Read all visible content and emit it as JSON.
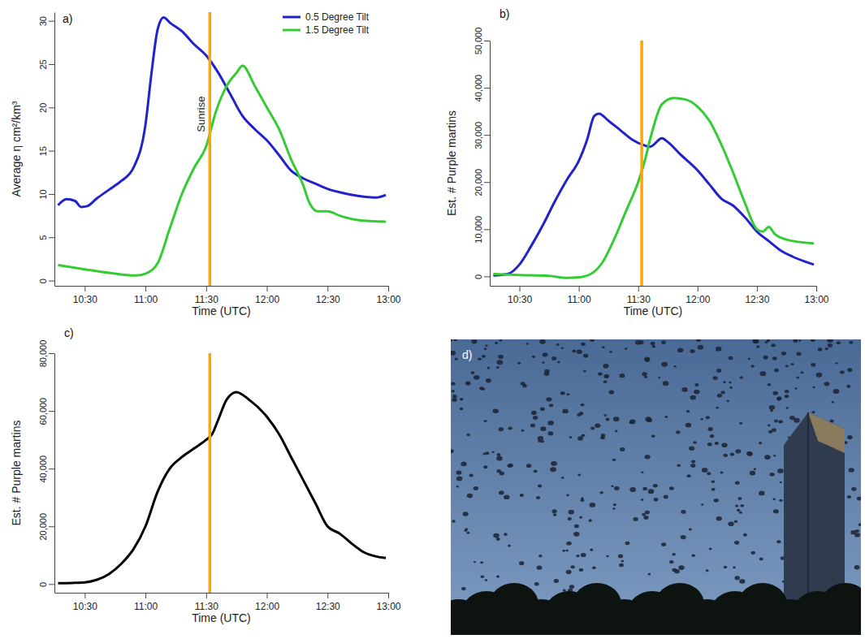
{
  "chart_data": [
    {
      "type": "line",
      "title": "a)",
      "x_label": "Time (UTC)",
      "y_label": "Average η cm²/km³",
      "annotation": "Sunrise",
      "sunrise": 11.53,
      "legend": "top-right",
      "xlim": [
        10.25,
        13.0
      ],
      "xticks": [
        {
          "value": 10.5,
          "label": "10:30"
        },
        {
          "value": 11.0,
          "label": "11:00"
        },
        {
          "value": 11.5,
          "label": "11:30"
        },
        {
          "value": 12.0,
          "label": "12:00"
        },
        {
          "value": 12.5,
          "label": "12:30"
        },
        {
          "value": 13.0,
          "label": "13:00"
        }
      ],
      "ylim": [
        -0.6,
        31
      ],
      "yticks": [
        0,
        5,
        10,
        15,
        20,
        25,
        30
      ],
      "series": [
        {
          "name": "0.5 Degree Tilt",
          "color": "#2222cc",
          "x": [
            10.28,
            10.35,
            10.42,
            10.47,
            10.52,
            10.6,
            10.7,
            10.8,
            10.9,
            11.0,
            11.05,
            11.1,
            11.15,
            11.2,
            11.3,
            11.4,
            11.5,
            11.6,
            11.7,
            11.8,
            11.9,
            12.0,
            12.1,
            12.2,
            12.3,
            12.4,
            12.5,
            12.6,
            12.7,
            12.8,
            12.9,
            12.98
          ],
          "values": [
            8.7,
            9.4,
            9.2,
            8.5,
            8.6,
            9.5,
            10.5,
            11.5,
            13.0,
            18.0,
            24.0,
            29.0,
            30.4,
            29.8,
            28.8,
            27.3,
            26.0,
            24.0,
            21.5,
            19.0,
            17.5,
            16.2,
            14.5,
            12.7,
            11.8,
            11.2,
            10.6,
            10.2,
            9.9,
            9.7,
            9.6,
            9.9
          ]
        },
        {
          "name": "1.5 Degree Tilt",
          "color": "#33cc33",
          "x": [
            10.28,
            10.5,
            10.75,
            10.92,
            11.0,
            11.1,
            11.2,
            11.3,
            11.4,
            11.5,
            11.58,
            11.67,
            11.75,
            11.8,
            11.9,
            12.0,
            12.1,
            12.2,
            12.3,
            12.35,
            12.42,
            12.5,
            12.6,
            12.75,
            12.98
          ],
          "values": [
            1.8,
            1.3,
            0.8,
            0.6,
            0.8,
            2.0,
            6.0,
            10.0,
            13.0,
            15.5,
            19.5,
            22.5,
            24.0,
            24.8,
            22.5,
            20.0,
            17.5,
            14.0,
            11.0,
            9.0,
            8.0,
            8.0,
            7.5,
            7.0,
            6.8
          ]
        }
      ]
    },
    {
      "type": "line",
      "title": "b)",
      "x_label": "Time (UTC)",
      "y_label": "Est. # Purple martins",
      "sunrise": 11.53,
      "xlim": [
        10.25,
        13.0
      ],
      "xticks": [
        {
          "value": 10.5,
          "label": "10:30"
        },
        {
          "value": 11.0,
          "label": "11:00"
        },
        {
          "value": 11.5,
          "label": "11:30"
        },
        {
          "value": 12.0,
          "label": "12:00"
        },
        {
          "value": 12.5,
          "label": "12:30"
        },
        {
          "value": 13.0,
          "label": "13:00"
        }
      ],
      "ylim": [
        -2000,
        50000
      ],
      "yticks": [
        0,
        {
          "value": 10000,
          "label": "10,000"
        },
        {
          "value": 20000,
          "label": "20,000"
        },
        {
          "value": 30000,
          "label": "30,000"
        },
        {
          "value": 40000,
          "label": "40,000"
        },
        {
          "value": 50000,
          "label": "50,000"
        }
      ],
      "series": [
        {
          "color": "#2222cc",
          "x": [
            10.28,
            10.4,
            10.5,
            10.6,
            10.7,
            10.8,
            10.9,
            11.0,
            11.07,
            11.13,
            11.17,
            11.25,
            11.35,
            11.45,
            11.55,
            11.6,
            11.7,
            11.75,
            11.85,
            12.0,
            12.1,
            12.2,
            12.3,
            12.4,
            12.5,
            12.6,
            12.7,
            12.8,
            12.9,
            12.98
          ],
          "values": [
            200,
            500,
            2500,
            6500,
            11000,
            16000,
            20500,
            24500,
            29000,
            34000,
            34500,
            33000,
            31000,
            29000,
            27800,
            27500,
            29300,
            28500,
            26000,
            22500,
            19500,
            16500,
            15000,
            12500,
            9500,
            7500,
            5500,
            4200,
            3200,
            2500
          ]
        },
        {
          "color": "#33cc33",
          "x": [
            10.28,
            10.5,
            10.75,
            10.9,
            11.0,
            11.1,
            11.2,
            11.3,
            11.4,
            11.5,
            11.55,
            11.6,
            11.7,
            11.8,
            11.9,
            12.0,
            12.1,
            12.2,
            12.3,
            12.4,
            12.5,
            12.55,
            12.6,
            12.65,
            12.75,
            12.98
          ],
          "values": [
            500,
            300,
            100,
            -300,
            -200,
            500,
            3000,
            8000,
            14000,
            20000,
            24000,
            29000,
            36500,
            37800,
            37500,
            36000,
            33000,
            28000,
            22000,
            15500,
            10000,
            9500,
            10500,
            9000,
            7800,
            7000
          ]
        }
      ]
    },
    {
      "type": "line",
      "title": "c)",
      "x_label": "Time (UTC)",
      "y_label": "Est. # Purple martins",
      "sunrise": 11.53,
      "color": "#000000",
      "xlim": [
        10.25,
        13.0
      ],
      "xticks": [
        {
          "value": 10.5,
          "label": "10:30"
        },
        {
          "value": 11.0,
          "label": "11:00"
        },
        {
          "value": 11.5,
          "label": "11:30"
        },
        {
          "value": 12.0,
          "label": "12:00"
        },
        {
          "value": 12.5,
          "label": "12:30"
        },
        {
          "value": 13.0,
          "label": "13:00"
        }
      ],
      "ylim": [
        -3000,
        80000
      ],
      "yticks": [
        0,
        {
          "value": 20000,
          "label": "20,000"
        },
        {
          "value": 40000,
          "label": "40,000"
        },
        {
          "value": 60000,
          "label": "60,000"
        },
        {
          "value": 80000,
          "label": "80,000"
        }
      ],
      "x": [
        10.28,
        10.4,
        10.5,
        10.6,
        10.7,
        10.8,
        10.9,
        11.0,
        11.1,
        11.2,
        11.3,
        11.4,
        11.5,
        11.55,
        11.6,
        11.67,
        11.75,
        11.85,
        12.0,
        12.1,
        12.2,
        12.3,
        12.4,
        12.5,
        12.6,
        12.7,
        12.8,
        12.98
      ],
      "values": [
        300,
        400,
        600,
        1500,
        3500,
        7000,
        12000,
        20000,
        32000,
        40000,
        44000,
        47000,
        50000,
        52000,
        57000,
        64000,
        66500,
        64000,
        58000,
        52000,
        44000,
        36000,
        28000,
        20000,
        17500,
        14000,
        11000,
        9000
      ]
    }
  ],
  "photo": {
    "label": "d)"
  }
}
